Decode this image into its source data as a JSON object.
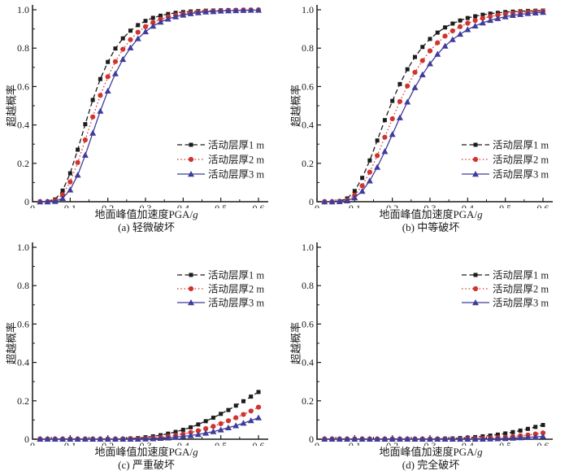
{
  "figure": {
    "ylabel": "超越概率",
    "xlabel": "地面峰值加速度PGA/g",
    "xlabel_prefix": "地面峰值加速度PGA/",
    "xlabel_italic": "g",
    "axis_color": "#1a1a1a",
    "background_color": "#ffffff",
    "xticks": [
      0,
      0.1,
      0.2,
      0.3,
      0.4,
      0.5,
      0.6
    ],
    "xtick_labels": [
      "0",
      "0.1",
      "0.2",
      "0.3",
      "0.4",
      "0.5",
      "0.6"
    ],
    "xminor_ticks": [
      0.05,
      0.15,
      0.25,
      0.35,
      0.45,
      0.55
    ],
    "yticks": [
      0,
      0.2,
      0.4,
      0.6,
      0.8,
      1.0
    ],
    "ytick_labels": [
      "0",
      "0.2",
      "0.4",
      "0.6",
      "0.8",
      "1.0"
    ],
    "yminor_ticks": [
      0.1,
      0.3,
      0.5,
      0.7,
      0.9
    ],
    "series_styles": [
      {
        "name": "活动层厚1 m",
        "color": "#1c1c1c",
        "line": "dashed",
        "marker": "square"
      },
      {
        "name": "活动层厚2 m",
        "color": "#d0342c",
        "line": "dotted",
        "marker": "circle"
      },
      {
        "name": "活动层厚3 m",
        "color": "#3f3c9b",
        "line": "solid",
        "marker": "triangle"
      }
    ]
  },
  "chart_data": [
    {
      "type": "line",
      "title": "(a) 轻微破坏",
      "xlabel": "地面峰值加速度PGA/g",
      "ylabel": "超越概率",
      "xlim": [
        0,
        0.6
      ],
      "ylim": [
        0,
        1.0
      ],
      "grid": false,
      "legend_position": "lower-right",
      "legend": [
        "活动层厚1 m",
        "活动层厚2 m",
        "活动层厚3 m"
      ],
      "x": [
        0.02,
        0.04,
        0.06,
        0.08,
        0.1,
        0.12,
        0.14,
        0.16,
        0.18,
        0.2,
        0.22,
        0.24,
        0.26,
        0.28,
        0.3,
        0.32,
        0.34,
        0.36,
        0.38,
        0.4,
        0.42,
        0.44,
        0.46,
        0.48,
        0.5,
        0.52,
        0.54,
        0.56,
        0.58,
        0.6
      ],
      "series": [
        {
          "name": "活动层厚1 m",
          "values": [
            0.0,
            0.001,
            0.012,
            0.058,
            0.148,
            0.271,
            0.404,
            0.53,
            0.639,
            0.728,
            0.798,
            0.851,
            0.891,
            0.92,
            0.942,
            0.958,
            0.969,
            0.978,
            0.984,
            0.988,
            0.991,
            0.993,
            0.995,
            0.996,
            0.997,
            0.998,
            0.998,
            0.999,
            0.999,
            0.999
          ]
        },
        {
          "name": "活动层厚2 m",
          "values": [
            0.0,
            0.0,
            0.007,
            0.036,
            0.103,
            0.204,
            0.322,
            0.442,
            0.554,
            0.651,
            0.73,
            0.794,
            0.844,
            0.883,
            0.912,
            0.934,
            0.951,
            0.963,
            0.972,
            0.979,
            0.984,
            0.988,
            0.991,
            0.993,
            0.995,
            0.996,
            0.997,
            0.998,
            0.998,
            0.999
          ]
        },
        {
          "name": "活动层厚3 m",
          "values": [
            0.0,
            0.0,
            0.002,
            0.018,
            0.062,
            0.139,
            0.243,
            0.358,
            0.472,
            0.577,
            0.667,
            0.742,
            0.802,
            0.85,
            0.886,
            0.915,
            0.936,
            0.952,
            0.964,
            0.973,
            0.98,
            0.985,
            0.989,
            0.991,
            0.994,
            0.995,
            0.996,
            0.997,
            0.998,
            0.998
          ]
        }
      ]
    },
    {
      "type": "line",
      "title": "(b) 中等破坏",
      "xlabel": "地面峰值加速度PGA/g",
      "ylabel": "超越概率",
      "xlim": [
        0,
        0.6
      ],
      "ylim": [
        0,
        1.0
      ],
      "grid": false,
      "legend_position": "lower-right",
      "legend": [
        "活动层厚1 m",
        "活动层厚2 m",
        "活动层厚3 m"
      ],
      "x": [
        0.02,
        0.04,
        0.06,
        0.08,
        0.1,
        0.12,
        0.14,
        0.16,
        0.18,
        0.2,
        0.22,
        0.24,
        0.26,
        0.28,
        0.3,
        0.32,
        0.34,
        0.36,
        0.38,
        0.4,
        0.42,
        0.44,
        0.46,
        0.48,
        0.5,
        0.52,
        0.54,
        0.56,
        0.58,
        0.6
      ],
      "series": [
        {
          "name": "活动层厚1 m",
          "values": [
            0.0,
            0.0,
            0.003,
            0.017,
            0.056,
            0.124,
            0.215,
            0.319,
            0.425,
            0.525,
            0.613,
            0.69,
            0.754,
            0.806,
            0.848,
            0.881,
            0.908,
            0.928,
            0.944,
            0.957,
            0.966,
            0.974,
            0.98,
            0.984,
            0.988,
            0.99,
            0.992,
            0.994,
            0.995,
            0.996
          ]
        },
        {
          "name": "活动层厚2 m",
          "values": [
            0.0,
            0.0,
            0.001,
            0.009,
            0.034,
            0.083,
            0.154,
            0.24,
            0.336,
            0.432,
            0.522,
            0.603,
            0.674,
            0.735,
            0.786,
            0.828,
            0.863,
            0.89,
            0.912,
            0.93,
            0.944,
            0.956,
            0.965,
            0.972,
            0.978,
            0.982,
            0.986,
            0.989,
            0.991,
            0.993
          ]
        },
        {
          "name": "活动层厚3 m",
          "values": [
            0.0,
            0.0,
            0.001,
            0.005,
            0.021,
            0.055,
            0.109,
            0.18,
            0.262,
            0.351,
            0.438,
            0.52,
            0.595,
            0.662,
            0.719,
            0.769,
            0.811,
            0.845,
            0.873,
            0.897,
            0.916,
            0.932,
            0.945,
            0.955,
            0.964,
            0.971,
            0.976,
            0.981,
            0.984,
            0.987
          ]
        }
      ]
    },
    {
      "type": "line",
      "title": "(c) 严重破坏",
      "xlabel": "地面峰值加速度PGA/g",
      "ylabel": "超越概率",
      "xlim": [
        0,
        0.6
      ],
      "ylim": [
        0,
        1.0
      ],
      "grid": false,
      "legend_position": "upper-right",
      "legend": [
        "活动层厚1 m",
        "活动层厚2 m",
        "活动层厚3 m"
      ],
      "x": [
        0.02,
        0.04,
        0.06,
        0.08,
        0.1,
        0.12,
        0.14,
        0.16,
        0.18,
        0.2,
        0.22,
        0.24,
        0.26,
        0.28,
        0.3,
        0.32,
        0.34,
        0.36,
        0.38,
        0.4,
        0.42,
        0.44,
        0.46,
        0.48,
        0.5,
        0.52,
        0.54,
        0.56,
        0.58,
        0.6
      ],
      "series": [
        {
          "name": "活动层厚1 m",
          "values": [
            0.001,
            0.001,
            0.001,
            0.001,
            0.001,
            0.001,
            0.001,
            0.001,
            0.001,
            0.001,
            0.001,
            0.002,
            0.004,
            0.006,
            0.01,
            0.015,
            0.021,
            0.029,
            0.038,
            0.049,
            0.062,
            0.077,
            0.094,
            0.112,
            0.132,
            0.152,
            0.175,
            0.198,
            0.222,
            0.246
          ]
        },
        {
          "name": "活动层厚2 m",
          "values": [
            0.001,
            0.001,
            0.001,
            0.001,
            0.001,
            0.001,
            0.001,
            0.001,
            0.001,
            0.001,
            0.001,
            0.001,
            0.002,
            0.003,
            0.004,
            0.007,
            0.01,
            0.015,
            0.02,
            0.027,
            0.035,
            0.044,
            0.055,
            0.067,
            0.081,
            0.096,
            0.112,
            0.129,
            0.147,
            0.167
          ]
        },
        {
          "name": "活动层厚3 m",
          "values": [
            0.001,
            0.001,
            0.001,
            0.001,
            0.001,
            0.001,
            0.001,
            0.001,
            0.001,
            0.001,
            0.001,
            0.001,
            0.001,
            0.001,
            0.002,
            0.003,
            0.005,
            0.007,
            0.011,
            0.015,
            0.019,
            0.025,
            0.032,
            0.04,
            0.049,
            0.06,
            0.071,
            0.084,
            0.097,
            0.112
          ]
        }
      ]
    },
    {
      "type": "line",
      "title": "(d) 完全破坏",
      "xlabel": "地面峰值加速度PGA/g",
      "ylabel": "超越概率",
      "xlim": [
        0,
        0.6
      ],
      "ylim": [
        0,
        1.0
      ],
      "grid": false,
      "legend_position": "upper-right",
      "legend": [
        "活动层厚1 m",
        "活动层厚2 m",
        "活动层厚3 m"
      ],
      "x": [
        0.02,
        0.04,
        0.06,
        0.08,
        0.1,
        0.12,
        0.14,
        0.16,
        0.18,
        0.2,
        0.22,
        0.24,
        0.26,
        0.28,
        0.3,
        0.32,
        0.34,
        0.36,
        0.38,
        0.4,
        0.42,
        0.44,
        0.46,
        0.48,
        0.5,
        0.52,
        0.54,
        0.56,
        0.58,
        0.6
      ],
      "series": [
        {
          "name": "活动层厚1 m",
          "values": [
            0.001,
            0.001,
            0.001,
            0.001,
            0.001,
            0.001,
            0.001,
            0.001,
            0.001,
            0.001,
            0.001,
            0.001,
            0.001,
            0.001,
            0.001,
            0.002,
            0.003,
            0.004,
            0.006,
            0.008,
            0.011,
            0.015,
            0.019,
            0.024,
            0.03,
            0.037,
            0.045,
            0.054,
            0.064,
            0.074
          ]
        },
        {
          "name": "活动层厚2 m",
          "values": [
            0.001,
            0.001,
            0.001,
            0.001,
            0.001,
            0.001,
            0.001,
            0.001,
            0.001,
            0.001,
            0.001,
            0.001,
            0.001,
            0.001,
            0.001,
            0.001,
            0.001,
            0.001,
            0.001,
            0.003,
            0.004,
            0.005,
            0.007,
            0.009,
            0.011,
            0.014,
            0.018,
            0.022,
            0.027,
            0.033
          ]
        },
        {
          "name": "活动层厚3 m",
          "values": [
            0.001,
            0.001,
            0.001,
            0.001,
            0.001,
            0.001,
            0.001,
            0.001,
            0.001,
            0.001,
            0.001,
            0.001,
            0.001,
            0.001,
            0.001,
            0.001,
            0.001,
            0.001,
            0.001,
            0.001,
            0.001,
            0.001,
            0.002,
            0.003,
            0.004,
            0.006,
            0.008,
            0.01,
            0.012,
            0.015
          ]
        }
      ]
    }
  ]
}
